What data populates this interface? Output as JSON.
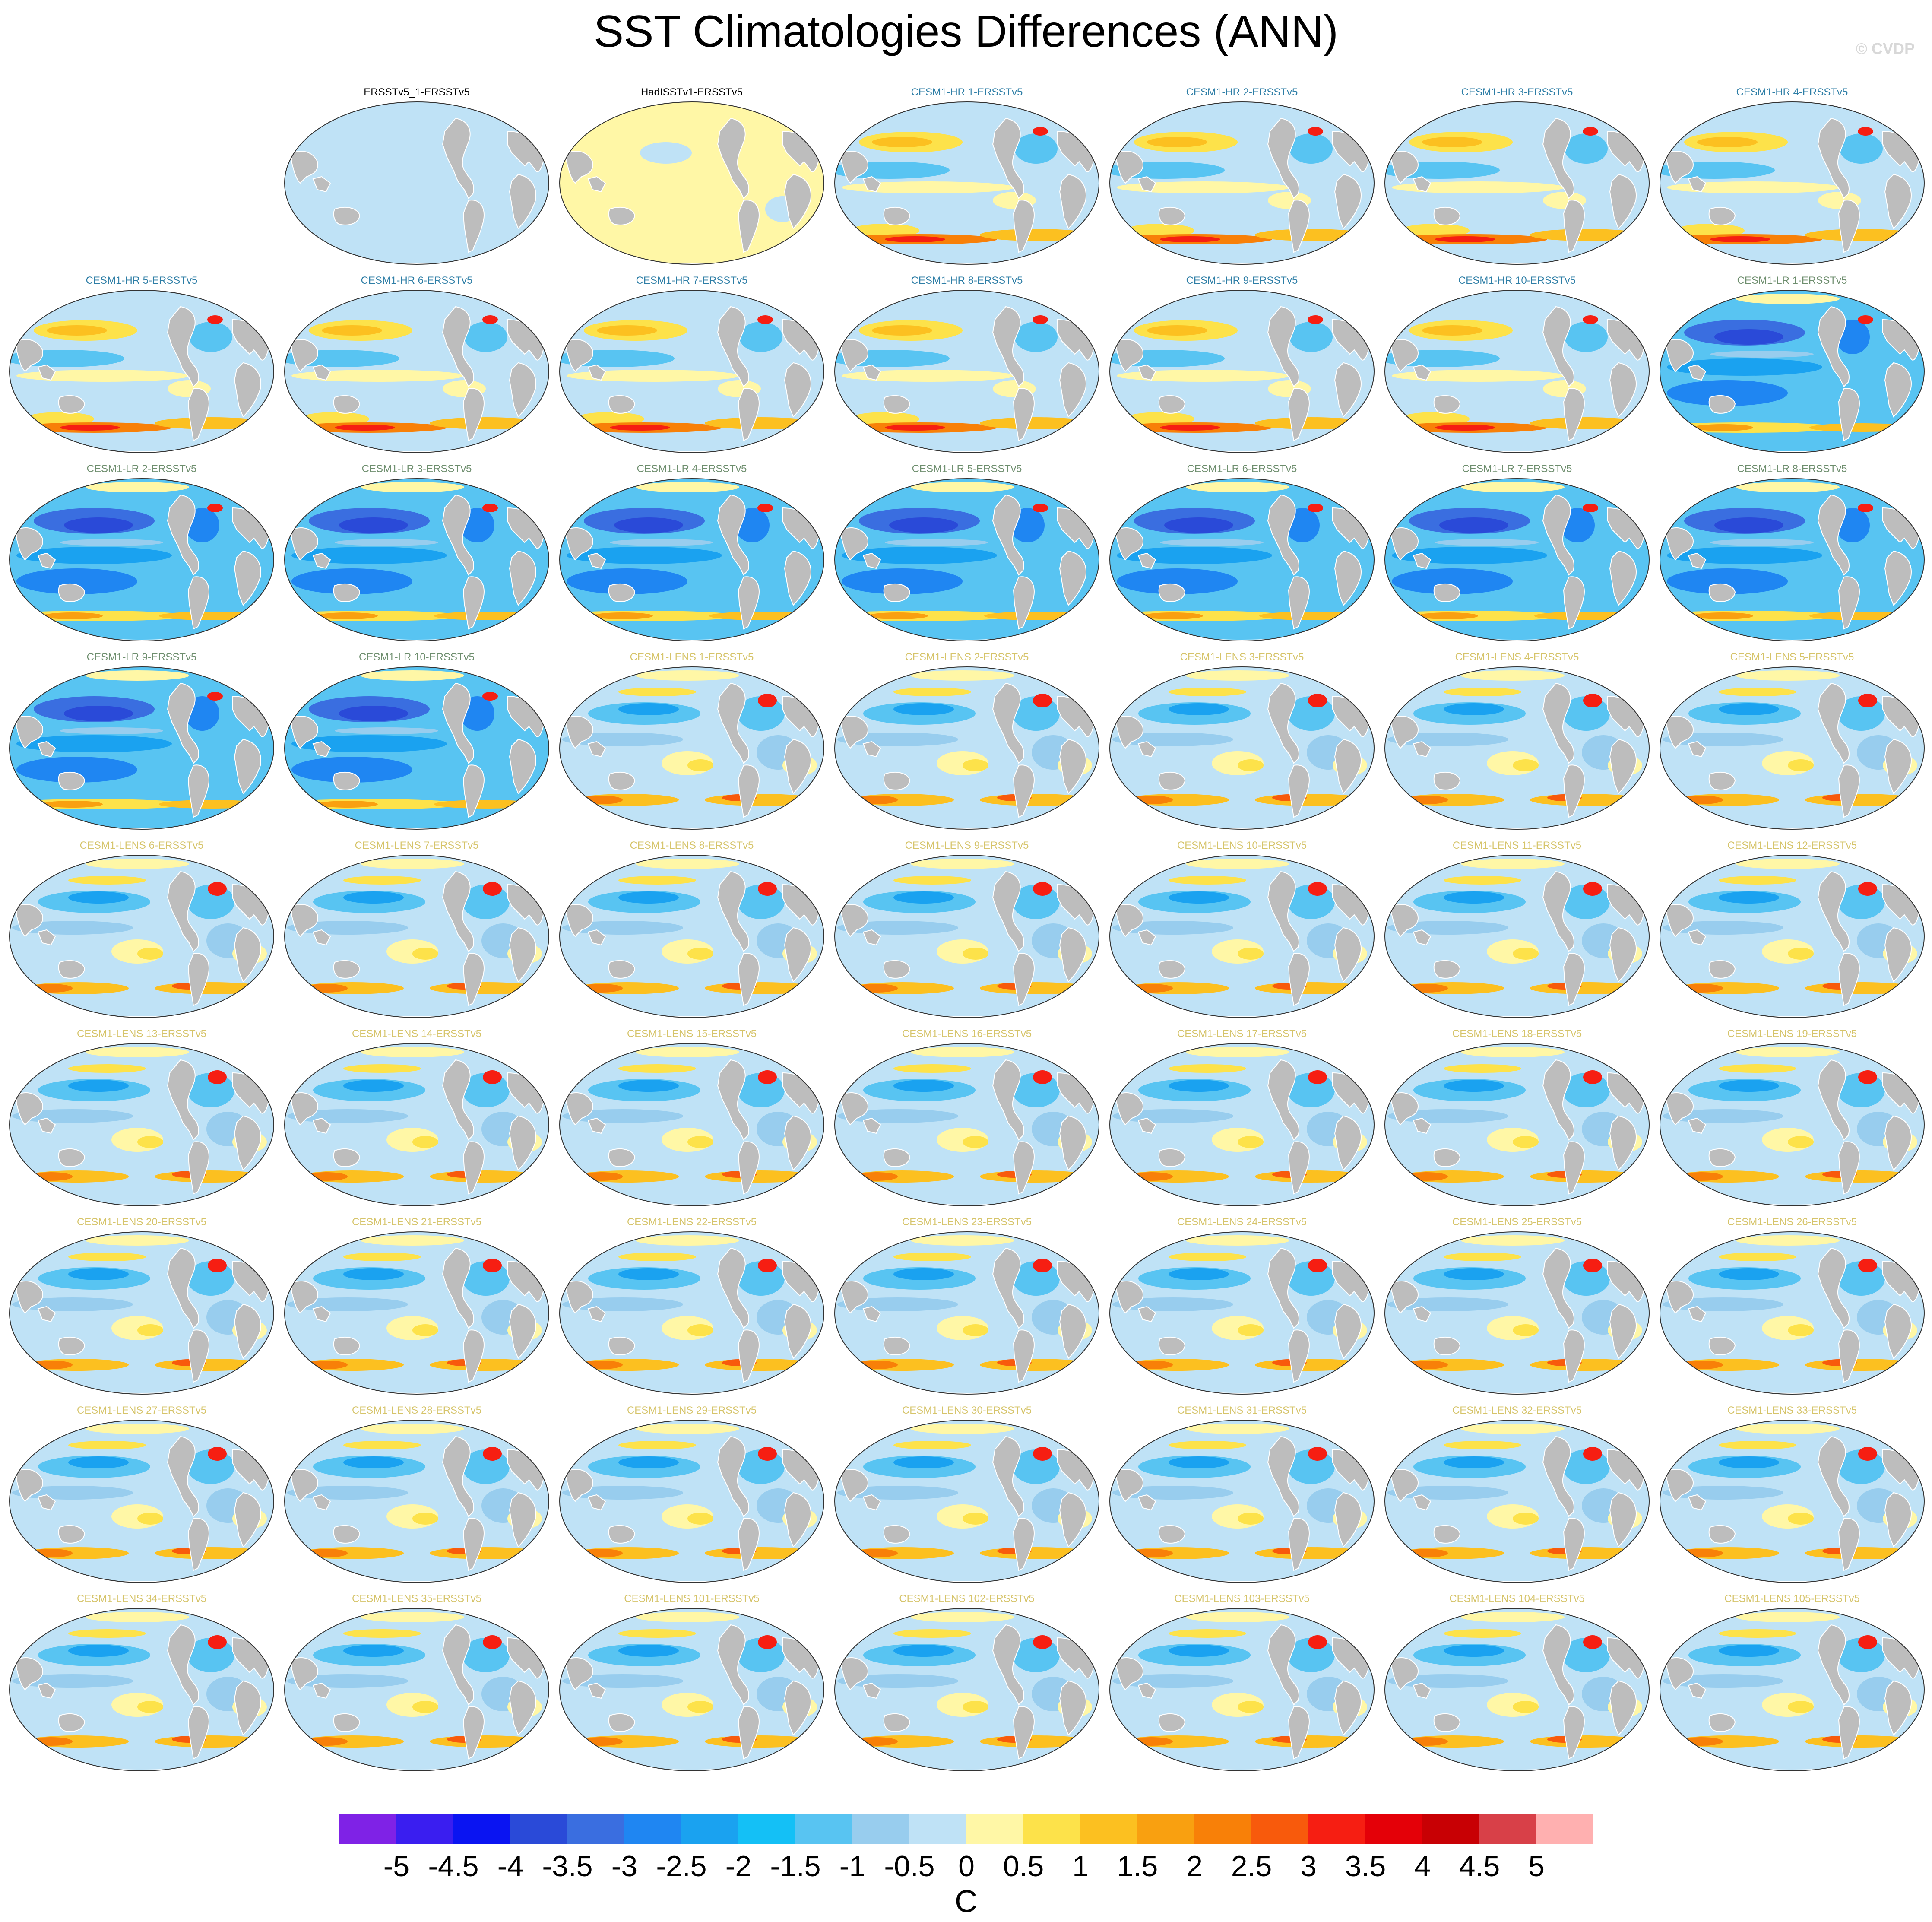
{
  "figure": {
    "title": "SST Climatologies Differences (ANN)",
    "watermark": "© CVDP",
    "colorbar_unit": "C"
  },
  "colorbar": {
    "ticks": [
      "-5",
      "-4.5",
      "-4",
      "-3.5",
      "-3",
      "-2.5",
      "-2",
      "-1.5",
      "-1",
      "-0.5",
      "0",
      "0.5",
      "1",
      "1.5",
      "2",
      "2.5",
      "3",
      "3.5",
      "4",
      "4.5",
      "5"
    ],
    "colors": [
      "#7f22e6",
      "#3a1ef0",
      "#0a14f2",
      "#2a4ad8",
      "#3a6ee0",
      "#1f86f2",
      "#1aa2f0",
      "#14c0f6",
      "#58c4f2",
      "#98cdee",
      "#bfe2f6",
      "#fff7a6",
      "#fde24a",
      "#fcc020",
      "#f9a010",
      "#f88008",
      "#f85a0c",
      "#f61e12",
      "#e40008",
      "#c80004",
      "#d84048",
      "#ffb0b0"
    ]
  },
  "panels": [
    {
      "label": "ERSSTv5_1-ERSSTv5",
      "pattern": "obs-neg",
      "title_color": "#000000"
    },
    {
      "label": "HadISSTv1-ERSSTv5",
      "pattern": "obs-pos",
      "title_color": "#000000"
    },
    {
      "label": "CESM1-HR 1-ERSSTv5",
      "pattern": "hr",
      "title_color": "#2e7ea6"
    },
    {
      "label": "CESM1-HR 2-ERSSTv5",
      "pattern": "hr",
      "title_color": "#2e7ea6"
    },
    {
      "label": "CESM1-HR 3-ERSSTv5",
      "pattern": "hr",
      "title_color": "#2e7ea6"
    },
    {
      "label": "CESM1-HR 4-ERSSTv5",
      "pattern": "hr",
      "title_color": "#2e7ea6"
    },
    {
      "label": "CESM1-HR 5-ERSSTv5",
      "pattern": "hr",
      "title_color": "#2e7ea6"
    },
    {
      "label": "CESM1-HR 6-ERSSTv5",
      "pattern": "hr",
      "title_color": "#2e7ea6"
    },
    {
      "label": "CESM1-HR 7-ERSSTv5",
      "pattern": "hr",
      "title_color": "#2e7ea6"
    },
    {
      "label": "CESM1-HR 8-ERSSTv5",
      "pattern": "hr",
      "title_color": "#2e7ea6"
    },
    {
      "label": "CESM1-HR 9-ERSSTv5",
      "pattern": "hr",
      "title_color": "#2e7ea6"
    },
    {
      "label": "CESM1-HR 10-ERSSTv5",
      "pattern": "hr",
      "title_color": "#2e7ea6"
    },
    {
      "label": "CESM1-LR 1-ERSSTv5",
      "pattern": "lr",
      "title_color": "#6e8e6e"
    },
    {
      "label": "CESM1-LR 2-ERSSTv5",
      "pattern": "lr",
      "title_color": "#6e8e6e"
    },
    {
      "label": "CESM1-LR 3-ERSSTv5",
      "pattern": "lr",
      "title_color": "#6e8e6e"
    },
    {
      "label": "CESM1-LR 4-ERSSTv5",
      "pattern": "lr",
      "title_color": "#6e8e6e"
    },
    {
      "label": "CESM1-LR 5-ERSSTv5",
      "pattern": "lr",
      "title_color": "#6e8e6e"
    },
    {
      "label": "CESM1-LR 6-ERSSTv5",
      "pattern": "lr",
      "title_color": "#6e8e6e"
    },
    {
      "label": "CESM1-LR 7-ERSSTv5",
      "pattern": "lr",
      "title_color": "#6e8e6e"
    },
    {
      "label": "CESM1-LR 8-ERSSTv5",
      "pattern": "lr",
      "title_color": "#6e8e6e"
    },
    {
      "label": "CESM1-LR 9-ERSSTv5",
      "pattern": "lr",
      "title_color": "#6e8e6e"
    },
    {
      "label": "CESM1-LR 10-ERSSTv5",
      "pattern": "lr",
      "title_color": "#6e8e6e"
    },
    {
      "label": "CESM1-LENS 1-ERSSTv5",
      "pattern": "lens",
      "title_color": "#d6c46a"
    },
    {
      "label": "CESM1-LENS 2-ERSSTv5",
      "pattern": "lens",
      "title_color": "#d6c46a"
    },
    {
      "label": "CESM1-LENS 3-ERSSTv5",
      "pattern": "lens",
      "title_color": "#d6c46a"
    },
    {
      "label": "CESM1-LENS 4-ERSSTv5",
      "pattern": "lens",
      "title_color": "#d6c46a"
    },
    {
      "label": "CESM1-LENS 5-ERSSTv5",
      "pattern": "lens",
      "title_color": "#d6c46a"
    },
    {
      "label": "CESM1-LENS 6-ERSSTv5",
      "pattern": "lens",
      "title_color": "#d6c46a"
    },
    {
      "label": "CESM1-LENS 7-ERSSTv5",
      "pattern": "lens",
      "title_color": "#d6c46a"
    },
    {
      "label": "CESM1-LENS 8-ERSSTv5",
      "pattern": "lens",
      "title_color": "#d6c46a"
    },
    {
      "label": "CESM1-LENS 9-ERSSTv5",
      "pattern": "lens",
      "title_color": "#d6c46a"
    },
    {
      "label": "CESM1-LENS 10-ERSSTv5",
      "pattern": "lens",
      "title_color": "#d6c46a"
    },
    {
      "label": "CESM1-LENS 11-ERSSTv5",
      "pattern": "lens",
      "title_color": "#d6c46a"
    },
    {
      "label": "CESM1-LENS 12-ERSSTv5",
      "pattern": "lens",
      "title_color": "#d6c46a"
    },
    {
      "label": "CESM1-LENS 13-ERSSTv5",
      "pattern": "lens",
      "title_color": "#d6c46a"
    },
    {
      "label": "CESM1-LENS 14-ERSSTv5",
      "pattern": "lens",
      "title_color": "#d6c46a"
    },
    {
      "label": "CESM1-LENS 15-ERSSTv5",
      "pattern": "lens",
      "title_color": "#d6c46a"
    },
    {
      "label": "CESM1-LENS 16-ERSSTv5",
      "pattern": "lens",
      "title_color": "#d6c46a"
    },
    {
      "label": "CESM1-LENS 17-ERSSTv5",
      "pattern": "lens",
      "title_color": "#d6c46a"
    },
    {
      "label": "CESM1-LENS 18-ERSSTv5",
      "pattern": "lens",
      "title_color": "#d6c46a"
    },
    {
      "label": "CESM1-LENS 19-ERSSTv5",
      "pattern": "lens",
      "title_color": "#d6c46a"
    },
    {
      "label": "CESM1-LENS 20-ERSSTv5",
      "pattern": "lens",
      "title_color": "#d6c46a"
    },
    {
      "label": "CESM1-LENS 21-ERSSTv5",
      "pattern": "lens",
      "title_color": "#d6c46a"
    },
    {
      "label": "CESM1-LENS 22-ERSSTv5",
      "pattern": "lens",
      "title_color": "#d6c46a"
    },
    {
      "label": "CESM1-LENS 23-ERSSTv5",
      "pattern": "lens",
      "title_color": "#d6c46a"
    },
    {
      "label": "CESM1-LENS 24-ERSSTv5",
      "pattern": "lens",
      "title_color": "#d6c46a"
    },
    {
      "label": "CESM1-LENS 25-ERSSTv5",
      "pattern": "lens",
      "title_color": "#d6c46a"
    },
    {
      "label": "CESM1-LENS 26-ERSSTv5",
      "pattern": "lens",
      "title_color": "#d6c46a"
    },
    {
      "label": "CESM1-LENS 27-ERSSTv5",
      "pattern": "lens",
      "title_color": "#d6c46a"
    },
    {
      "label": "CESM1-LENS 28-ERSSTv5",
      "pattern": "lens",
      "title_color": "#d6c46a"
    },
    {
      "label": "CESM1-LENS 29-ERSSTv5",
      "pattern": "lens",
      "title_color": "#d6c46a"
    },
    {
      "label": "CESM1-LENS 30-ERSSTv5",
      "pattern": "lens",
      "title_color": "#d6c46a"
    },
    {
      "label": "CESM1-LENS 31-ERSSTv5",
      "pattern": "lens",
      "title_color": "#d6c46a"
    },
    {
      "label": "CESM1-LENS 32-ERSSTv5",
      "pattern": "lens",
      "title_color": "#d6c46a"
    },
    {
      "label": "CESM1-LENS 33-ERSSTv5",
      "pattern": "lens",
      "title_color": "#d6c46a"
    },
    {
      "label": "CESM1-LENS 34-ERSSTv5",
      "pattern": "lens",
      "title_color": "#d6c46a"
    },
    {
      "label": "CESM1-LENS 35-ERSSTv5",
      "pattern": "lens",
      "title_color": "#d6c46a"
    },
    {
      "label": "CESM1-LENS 101-ERSSTv5",
      "pattern": "lens",
      "title_color": "#d6c46a"
    },
    {
      "label": "CESM1-LENS 102-ERSSTv5",
      "pattern": "lens",
      "title_color": "#d6c46a"
    },
    {
      "label": "CESM1-LENS 103-ERSSTv5",
      "pattern": "lens",
      "title_color": "#d6c46a"
    },
    {
      "label": "CESM1-LENS 104-ERSSTv5",
      "pattern": "lens",
      "title_color": "#d6c46a"
    },
    {
      "label": "CESM1-LENS 105-ERSSTv5",
      "pattern": "lens",
      "title_color": "#d6c46a"
    }
  ]
}
